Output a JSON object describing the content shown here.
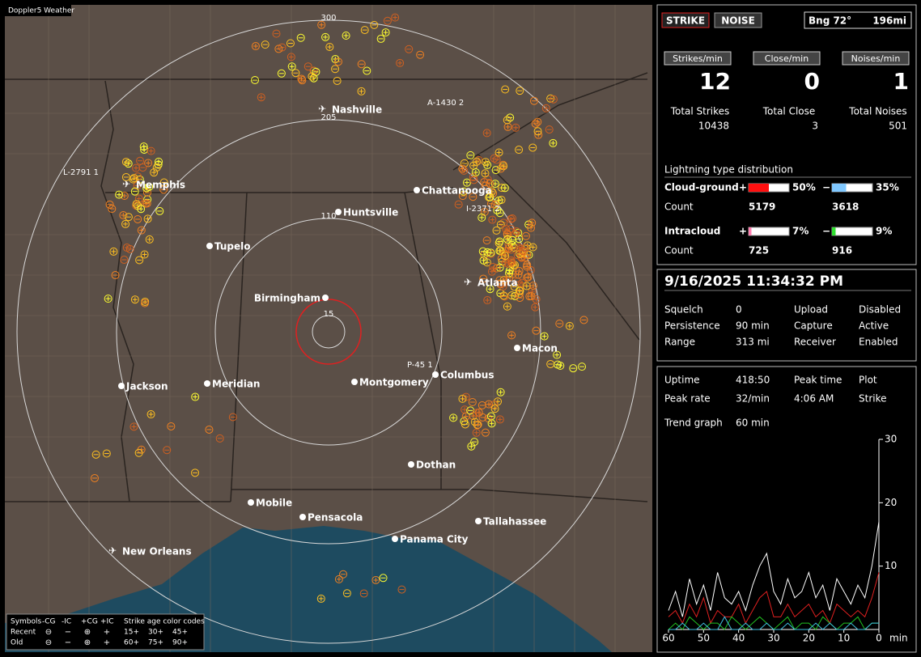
{
  "app_title": "Doppler5 Weather",
  "map": {
    "range_rings": [
      300,
      205,
      110,
      15
    ],
    "cities": [
      {
        "name": "Nashville",
        "airport": true
      },
      {
        "name": "Memphis",
        "airport": true
      },
      {
        "name": "Chattanooga",
        "airport": false
      },
      {
        "name": "Huntsville",
        "airport": false
      },
      {
        "name": "Tupelo",
        "airport": false
      },
      {
        "name": "Birmingham",
        "airport": false
      },
      {
        "name": "Atlanta",
        "airport": true
      },
      {
        "name": "Macon",
        "airport": false
      },
      {
        "name": "Jackson",
        "airport": false
      },
      {
        "name": "Meridian",
        "airport": false
      },
      {
        "name": "Montgomery",
        "airport": false
      },
      {
        "name": "Columbus",
        "airport": false
      },
      {
        "name": "Dothan",
        "airport": false
      },
      {
        "name": "Mobile",
        "airport": false
      },
      {
        "name": "Pensacola",
        "airport": false
      },
      {
        "name": "Tallahassee",
        "airport": false
      },
      {
        "name": "Panama City",
        "airport": false
      },
      {
        "name": "New Orleans",
        "airport": true
      }
    ],
    "storm_labels": [
      "A-1430 2",
      "L-2791 1",
      "I-2371 2",
      "P-45 1"
    ],
    "legend": {
      "symbols_label": "Symbols",
      "types": [
        "-CG",
        "-IC",
        "+CG",
        "+IC"
      ],
      "age_label": "Strike age color codes",
      "rows": [
        {
          "label": "Recent",
          "ages": [
            "15+",
            "30+",
            "45+"
          ]
        },
        {
          "label": "Old",
          "ages": [
            "60+",
            "75+",
            "90+"
          ]
        }
      ]
    }
  },
  "status": {
    "strike": "STRIKE",
    "noise": "NOISE",
    "bearing": "Bng 72°",
    "distance": "196mi"
  },
  "rates": [
    {
      "label": "Strikes/min",
      "value": 12,
      "total_label": "Total Strikes",
      "total": 10438
    },
    {
      "label": "Close/min",
      "value": 0,
      "total_label": "Total Close",
      "total": 3
    },
    {
      "label": "Noises/min",
      "value": 1,
      "total_label": "Total Noises",
      "total": 501
    }
  ],
  "distribution": {
    "title": "Lightning type distribution",
    "count_label": "Count",
    "rows": [
      {
        "label": "Cloud-ground",
        "pos_sign": "+",
        "pos": {
          "percent": 50,
          "label": "50%"
        },
        "neg_sign": "−",
        "neg": {
          "percent": 35,
          "label": "35%"
        },
        "pos_count": 5179,
        "neg_count": 3618
      },
      {
        "label": "Intracloud",
        "pos_sign": "+",
        "pos": {
          "percent": 7,
          "label": "7%"
        },
        "neg_sign": "−",
        "neg": {
          "percent": 9,
          "label": "9%"
        },
        "pos_count": 725,
        "neg_count": 916
      }
    ]
  },
  "datetime": "9/16/2025 11:34:32 PM",
  "settings": [
    [
      "Squelch",
      0,
      "Upload",
      "Disabled"
    ],
    [
      "Persistence",
      "90 min",
      "Capture",
      "Active"
    ],
    [
      "Range",
      "313 mi",
      "Receiver",
      "Enabled"
    ]
  ],
  "stats": [
    [
      "Uptime",
      "418:50",
      "Peak time",
      "Plot"
    ],
    [
      "Peak rate",
      "32/min",
      "4:06 AM",
      "Strike"
    ],
    [
      "Trend graph",
      "60 min"
    ]
  ],
  "chart_data": {
    "type": "line",
    "x_unit": "min",
    "x": [
      60,
      58,
      56,
      54,
      52,
      50,
      48,
      46,
      44,
      42,
      40,
      38,
      36,
      34,
      32,
      30,
      28,
      26,
      24,
      22,
      20,
      18,
      16,
      14,
      12,
      10,
      8,
      6,
      4,
      2,
      0
    ],
    "series": [
      {
        "color": "#ffffff",
        "values": [
          3,
          6,
          2,
          8,
          4,
          7,
          3,
          9,
          5,
          4,
          6,
          3,
          7,
          10,
          12,
          6,
          4,
          8,
          5,
          6,
          9,
          5,
          7,
          3,
          8,
          6,
          4,
          7,
          5,
          10,
          17
        ]
      },
      {
        "color": "#e02020",
        "values": [
          2,
          3,
          1,
          4,
          2,
          5,
          1,
          3,
          2,
          2,
          4,
          1,
          3,
          5,
          6,
          2,
          2,
          4,
          2,
          3,
          4,
          2,
          3,
          1,
          4,
          3,
          2,
          3,
          2,
          5,
          9
        ]
      },
      {
        "color": "#20c020",
        "values": [
          0,
          1,
          0,
          2,
          1,
          0,
          1,
          1,
          0,
          2,
          1,
          0,
          1,
          2,
          1,
          0,
          1,
          2,
          0,
          1,
          1,
          0,
          2,
          1,
          0,
          1,
          1,
          2,
          0,
          1,
          1
        ]
      },
      {
        "color": "#40c0e0",
        "values": [
          0,
          0,
          1,
          0,
          0,
          1,
          0,
          0,
          2,
          0,
          0,
          1,
          0,
          0,
          1,
          0,
          0,
          1,
          0,
          0,
          0,
          1,
          0,
          1,
          0,
          0,
          1,
          0,
          0,
          1,
          1
        ]
      }
    ],
    "xlim": [
      60,
      0
    ],
    "ylim": [
      0,
      30
    ],
    "xticks": [
      60,
      50,
      40,
      30,
      20,
      10,
      0
    ],
    "yticks": [
      10,
      20,
      30
    ]
  }
}
